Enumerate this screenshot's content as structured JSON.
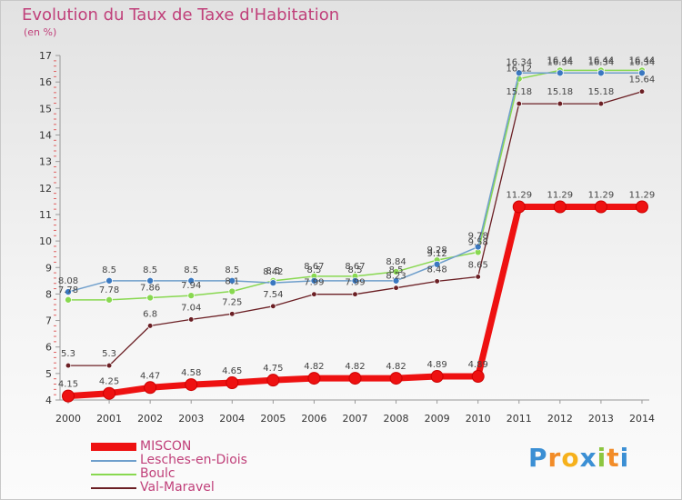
{
  "chart_data": {
    "type": "line",
    "title": "Evolution du Taux de Taxe d'Habitation",
    "unit_label": "(en %)",
    "x": [
      "2000",
      "2001",
      "2002",
      "2003",
      "2004",
      "2005",
      "2006",
      "2007",
      "2008",
      "2009",
      "2010",
      "2011",
      "2012",
      "2013",
      "2014"
    ],
    "ylim": [
      4,
      17
    ],
    "yticks": [
      "4",
      "5",
      "6",
      "7",
      "8",
      "9",
      "10",
      "11",
      "12",
      "13",
      "14",
      "15",
      "16",
      "17"
    ],
    "grid": false,
    "legend_position": "bottom-left",
    "series": [
      {
        "name": "MISCON",
        "color": "#ee1111",
        "values": [
          4.15,
          4.25,
          4.47,
          4.58,
          4.65,
          4.75,
          4.82,
          4.82,
          4.82,
          4.89,
          4.89,
          11.29,
          11.29,
          11.29,
          11.29
        ],
        "labels": [
          "4.15",
          "4.25",
          "4.47",
          "4.58",
          "4.65",
          "4.75",
          "4.82",
          "4.82",
          "4.82",
          "4.89",
          "4.89",
          "11.29",
          "11.29",
          "11.29",
          "11.29"
        ]
      },
      {
        "name": "Lesches-en-Diois",
        "color": "#6f9fcc",
        "values": [
          8.08,
          8.5,
          8.5,
          8.5,
          8.5,
          8.42,
          8.5,
          8.5,
          8.5,
          9.12,
          9.78,
          16.34,
          16.34,
          16.34,
          16.34
        ],
        "labels": [
          "8.08",
          "8.5",
          "8.5",
          "8.5",
          "8.5",
          "8.42",
          "8.5",
          "8.5",
          "8.5",
          "9.12",
          "9.78",
          "16.34",
          "16.34",
          "16.34",
          "16.34"
        ]
      },
      {
        "name": "Boulc",
        "color": "#88d850",
        "values": [
          7.78,
          7.78,
          7.86,
          7.94,
          8.1,
          8.5,
          8.67,
          8.67,
          8.84,
          9.28,
          9.58,
          16.12,
          16.44,
          16.44,
          16.44
        ],
        "labels": [
          "7.78",
          "7.78",
          "7.86",
          "7.94",
          "8.1",
          "8.5",
          "8.67",
          "8.67",
          "8.84",
          "9.28",
          "9.58",
          "16.12",
          "16.44",
          "16.44",
          "16.44"
        ]
      },
      {
        "name": "Val-Maravel",
        "color": "#6b1f24",
        "values": [
          5.3,
          5.3,
          6.8,
          7.04,
          7.25,
          7.54,
          7.99,
          7.99,
          8.23,
          8.48,
          8.65,
          15.18,
          15.18,
          15.18,
          15.64
        ],
        "labels": [
          "5.3",
          "5.3",
          "6.8",
          "7.04",
          "7.25",
          "7.54",
          "7.99",
          "7.99",
          "8.23",
          "8.48",
          "8.65",
          "15.18",
          "15.18",
          "15.18",
          "15.64"
        ]
      }
    ]
  },
  "brand": {
    "letters": [
      "P",
      "r",
      "o",
      "x",
      "i",
      "t",
      "i"
    ],
    "colors": [
      "#3b8fd4",
      "#f28c28",
      "#f6b11c",
      "#3b8fd4",
      "#8cc63f",
      "#f28c28",
      "#3b8fd4"
    ]
  }
}
